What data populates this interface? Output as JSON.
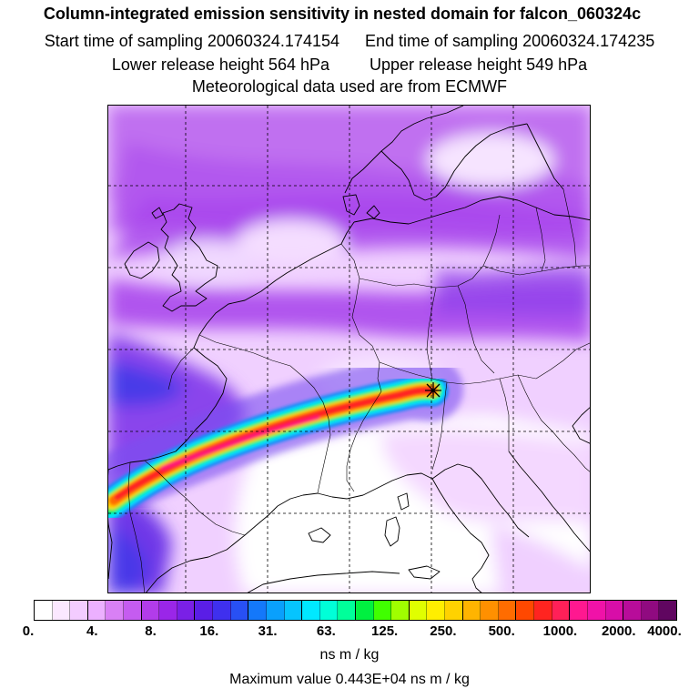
{
  "title": {
    "line1": "Column-integrated emission sensitivity in nested domain for falcon_060324c",
    "start_label": "Start time of sampling 20060324.174154",
    "end_label": "End time of sampling 20060324.174235",
    "lower_label": "Lower release height  564 hPa",
    "upper_label": "Upper release height  549 hPa",
    "line4": "Meteorological data used are from ECMWF"
  },
  "legend": {
    "tick_labels": [
      "0.",
      "4.",
      "8.",
      "16.",
      "31.",
      "63.",
      "125.",
      "250.",
      "500.",
      "1000.",
      "2000.",
      "4000."
    ],
    "units": "ns m / kg",
    "max_value": "Maximum value  0.443E+04 ns m / kg",
    "colors": [
      "#ffffff",
      "#fbe8ff",
      "#f3ccff",
      "#ecb0ff",
      "#d980f5",
      "#c55cf0",
      "#b23cea",
      "#9a26e8",
      "#7a20e6",
      "#5a1ee6",
      "#3f30ee",
      "#2850f4",
      "#1478fa",
      "#0aa0fc",
      "#06c4fe",
      "#00e8ff",
      "#00ffd8",
      "#00ff9a",
      "#00f040",
      "#40ff00",
      "#a0ff00",
      "#e0ff00",
      "#ffee00",
      "#ffd200",
      "#ffb400",
      "#ff9000",
      "#ff6c00",
      "#ff4800",
      "#ff2420",
      "#ff2058",
      "#ff1890",
      "#f012a8",
      "#d80ea8",
      "#b80c9a",
      "#900a80",
      "#600660"
    ]
  },
  "map": {
    "release_marker": "release-point"
  },
  "colors": {
    "plume_core": "#ff2020",
    "background_purple": "#b060e8",
    "dark_blue": "#4030e0"
  }
}
